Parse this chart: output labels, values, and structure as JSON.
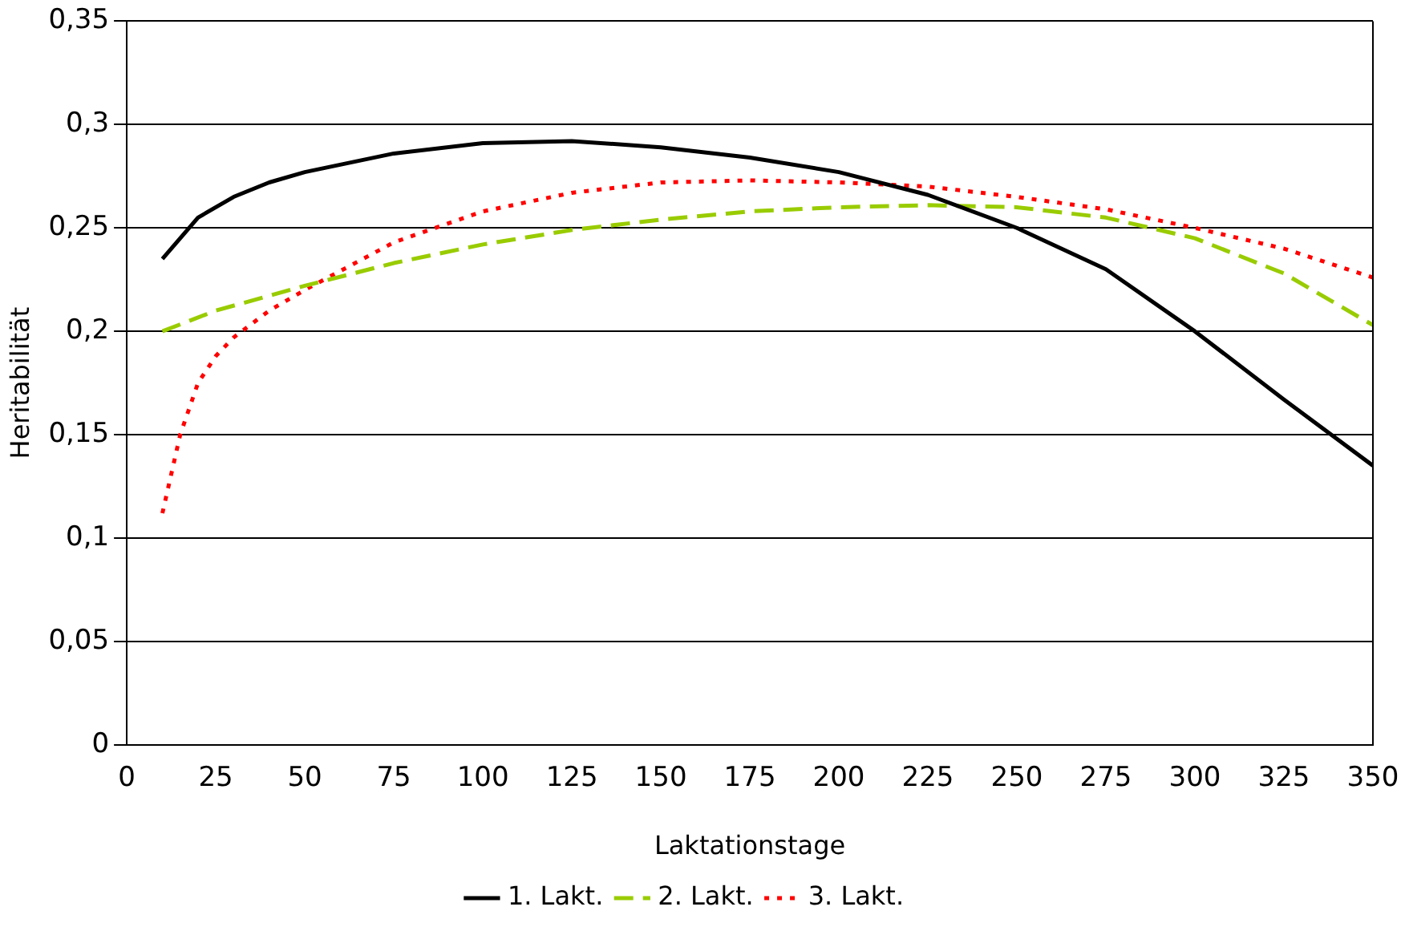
{
  "chart_data": {
    "type": "line",
    "xlabel": "Laktationstage",
    "ylabel": "Heritabilität",
    "xlim": [
      0,
      350
    ],
    "xticks": [
      0,
      25,
      50,
      75,
      100,
      125,
      150,
      175,
      200,
      225,
      250,
      275,
      300,
      325,
      350
    ],
    "ylim": [
      0,
      0.35
    ],
    "yticks": [
      {
        "value": 0,
        "label": "0"
      },
      {
        "value": 0.05,
        "label": "0,05"
      },
      {
        "value": 0.1,
        "label": "0,1"
      },
      {
        "value": 0.15,
        "label": "0,15"
      },
      {
        "value": 0.2,
        "label": "0,2"
      },
      {
        "value": 0.25,
        "label": "0,25"
      },
      {
        "value": 0.3,
        "label": "0,3"
      },
      {
        "value": 0.35,
        "label": "0,35"
      }
    ],
    "grid": "y",
    "legend": "bottom",
    "marker": "none",
    "series": [
      {
        "name": "1. Lakt.",
        "color": "#000000",
        "line_style": "solid",
        "x": [
          10,
          20,
          30,
          40,
          50,
          75,
          100,
          125,
          150,
          175,
          200,
          225,
          250,
          275,
          300,
          325,
          350
        ],
        "values": [
          0.235,
          0.255,
          0.265,
          0.272,
          0.277,
          0.286,
          0.291,
          0.292,
          0.289,
          0.284,
          0.277,
          0.266,
          0.25,
          0.23,
          0.2,
          0.167,
          0.135
        ]
      },
      {
        "name": "2. Lakt.",
        "color": "#99cc00",
        "line_style": "dashed",
        "x": [
          10,
          25,
          50,
          75,
          100,
          125,
          150,
          175,
          200,
          225,
          250,
          275,
          300,
          325,
          350
        ],
        "values": [
          0.2,
          0.21,
          0.222,
          0.233,
          0.242,
          0.249,
          0.254,
          0.258,
          0.26,
          0.261,
          0.26,
          0.255,
          0.245,
          0.228,
          0.203
        ]
      },
      {
        "name": "3. Lakt.",
        "color": "#ff0000",
        "line_style": "dotted",
        "x": [
          10,
          15,
          20,
          25,
          30,
          40,
          50,
          75,
          100,
          125,
          150,
          175,
          200,
          225,
          250,
          275,
          300,
          325,
          350
        ],
        "values": [
          0.112,
          0.15,
          0.175,
          0.188,
          0.197,
          0.21,
          0.22,
          0.243,
          0.258,
          0.267,
          0.272,
          0.273,
          0.272,
          0.27,
          0.265,
          0.259,
          0.25,
          0.24,
          0.226
        ]
      }
    ]
  }
}
